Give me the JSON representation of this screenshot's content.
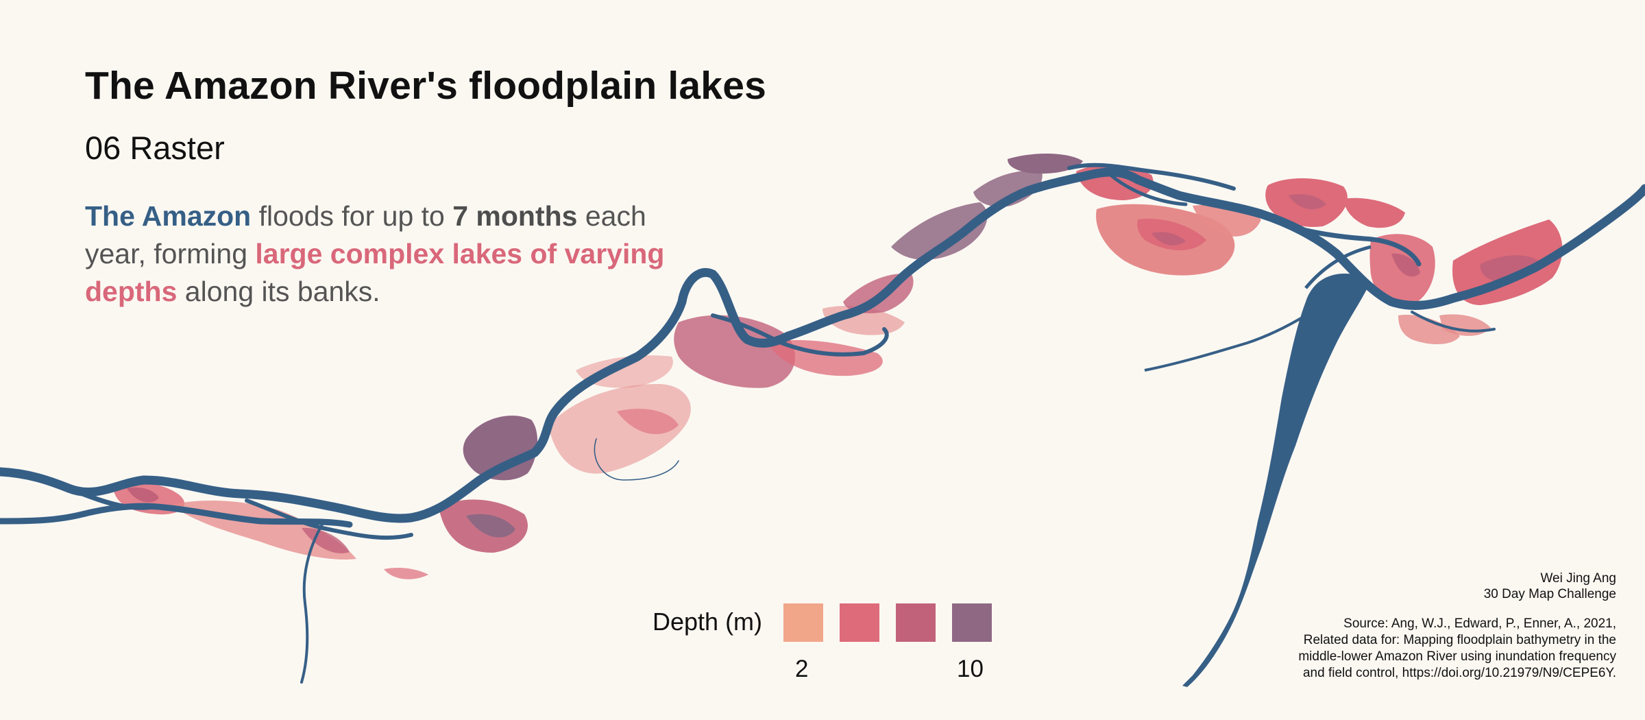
{
  "title": "The Amazon River's floodplain lakes",
  "subtitle": "06 Raster",
  "description": {
    "part1": "The Amazon",
    "part2": " floods for up to ",
    "part3": "7 months",
    "part4": " each year, forming ",
    "part5": "large complex lakes of varying depths",
    "part6": " along its banks."
  },
  "legend": {
    "title": "Depth (m)",
    "swatch_colors": [
      "#f1a68a",
      "#dd6b7a",
      "#c2627a",
      "#8f6884"
    ],
    "tick_labels": [
      "2",
      "10"
    ]
  },
  "credits": {
    "author": "Wei Jing Ang",
    "project": "30 Day Map Challenge"
  },
  "source_lines": [
    "Source: Ang, W.J., Edward, P., Enner, A., 2021,",
    "Related data for: Mapping floodplain bathymetry in the",
    "middle-lower Amazon River using inundation frequency",
    "and field control, https://doi.org/10.21979/N9/CEPE6Y."
  ],
  "colors": {
    "river": "#365f86",
    "background": "#fbf8f2"
  }
}
